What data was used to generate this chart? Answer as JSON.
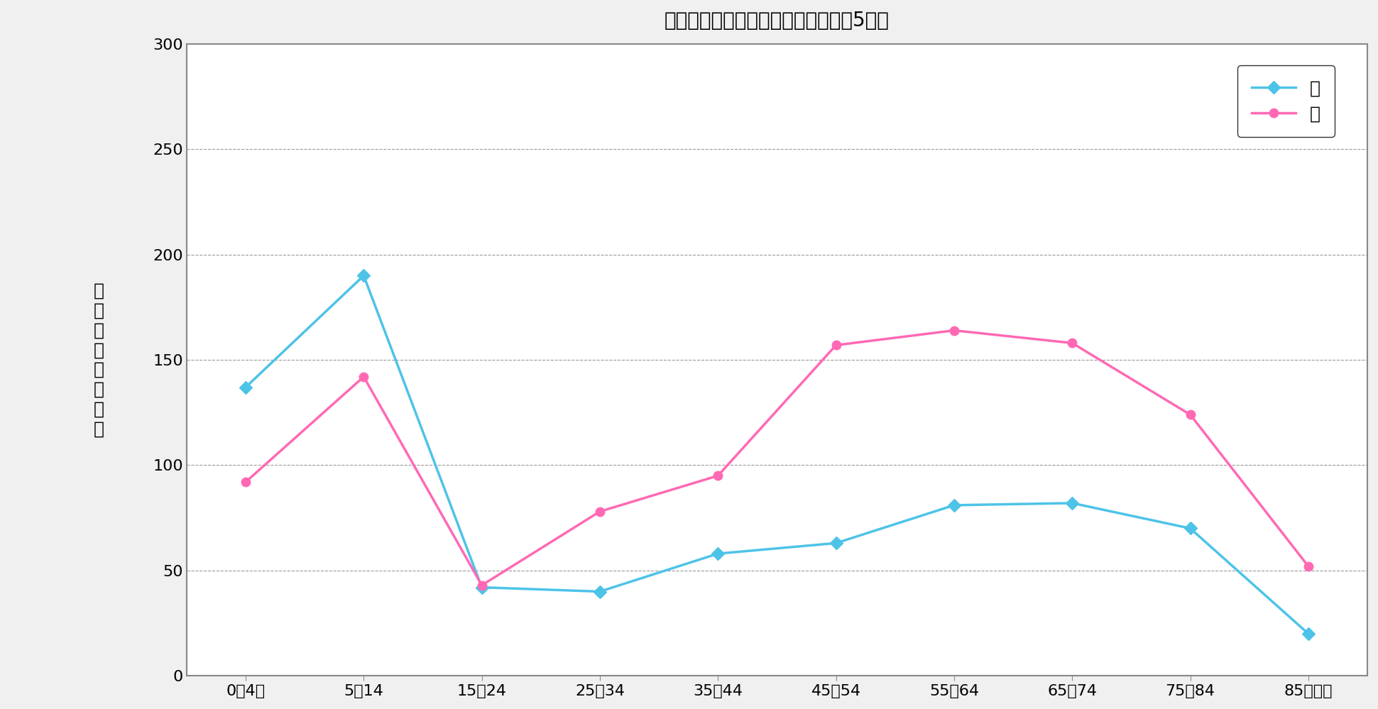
{
  "title": "喘息の年齢別・性別総患者数（令和5年）",
  "categories": [
    "0～4歳",
    "5～14",
    "15～24",
    "25～34",
    "35～44",
    "45～54",
    "55～64",
    "65～74",
    "75～84",
    "85歳以上"
  ],
  "male_values": [
    137,
    190,
    42,
    40,
    58,
    63,
    81,
    82,
    70,
    20
  ],
  "female_values": [
    92,
    142,
    43,
    78,
    95,
    157,
    164,
    158,
    124,
    52
  ],
  "male_color": "#4DC3E8",
  "female_color": "#FF69B4",
  "male_label": "男",
  "female_label": "女",
  "ylabel_chars": [
    "総",
    "患",
    "者",
    "数",
    "（",
    "千",
    "人",
    "）"
  ],
  "ylim": [
    0,
    300
  ],
  "yticks": [
    0,
    50,
    100,
    150,
    200,
    250,
    300
  ],
  "grid_color": "#999999",
  "spine_color": "#888888",
  "background_color": "#f0f0f0",
  "plot_bg_color": "#ffffff",
  "title_fontsize": 20,
  "axis_fontsize": 18,
  "tick_fontsize": 16,
  "legend_fontsize": 18,
  "marker_size": 9,
  "line_width": 2.5
}
